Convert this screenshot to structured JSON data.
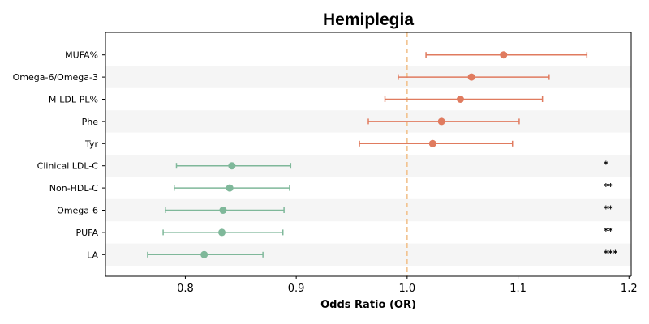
{
  "chart_data": {
    "type": "forest",
    "title": "Hemiplegia",
    "xlabel": "Odds Ratio (OR)",
    "ylabel": "",
    "xlim": [
      0.728,
      1.202
    ],
    "xticks": [
      0.8,
      0.9,
      1.0,
      1.1,
      1.2
    ],
    "xtick_labels": [
      "0.8",
      "0.9",
      "1.0",
      "1.1",
      "1.2"
    ],
    "reference_line": 1.0,
    "grid": false,
    "row_shading": "alternating light gray bands",
    "colors": {
      "positive": "#E07B5F",
      "negative": "#7FB89A",
      "reference": "#F2C28E",
      "band": "#F5F5F5"
    },
    "rows": [
      {
        "label": "MUFA%",
        "or": 1.087,
        "lower": 1.017,
        "upper": 1.162,
        "sig": "",
        "group": "positive"
      },
      {
        "label": "Omega-6/Omega-3",
        "or": 1.058,
        "lower": 0.992,
        "upper": 1.128,
        "sig": "",
        "group": "positive"
      },
      {
        "label": "M-LDL-PL%",
        "or": 1.048,
        "lower": 0.98,
        "upper": 1.122,
        "sig": "",
        "group": "positive"
      },
      {
        "label": "Phe",
        "or": 1.031,
        "lower": 0.965,
        "upper": 1.101,
        "sig": "",
        "group": "positive"
      },
      {
        "label": "Tyr",
        "or": 1.023,
        "lower": 0.957,
        "upper": 1.095,
        "sig": "",
        "group": "positive"
      },
      {
        "label": "Clinical LDL-C",
        "or": 0.842,
        "lower": 0.792,
        "upper": 0.895,
        "sig": "*",
        "group": "negative"
      },
      {
        "label": "Non-HDL-C",
        "or": 0.84,
        "lower": 0.79,
        "upper": 0.894,
        "sig": "**",
        "group": "negative"
      },
      {
        "label": "Omega-6",
        "or": 0.834,
        "lower": 0.782,
        "upper": 0.889,
        "sig": "**",
        "group": "negative"
      },
      {
        "label": "PUFA",
        "or": 0.833,
        "lower": 0.78,
        "upper": 0.888,
        "sig": "**",
        "group": "negative"
      },
      {
        "label": "LA",
        "or": 0.817,
        "lower": 0.766,
        "upper": 0.87,
        "sig": "***",
        "group": "negative"
      }
    ]
  }
}
